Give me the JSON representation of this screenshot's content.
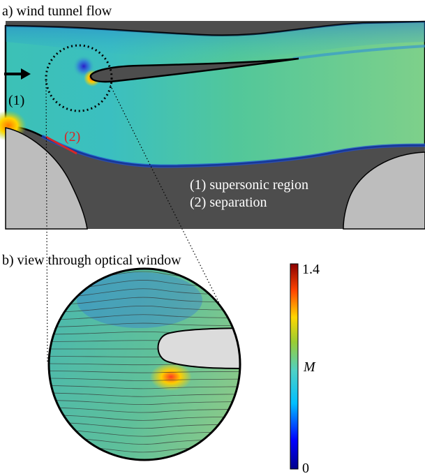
{
  "panel_a": {
    "title": "a) wind tunnel flow",
    "marker_1": "(1)",
    "marker_2": "(2)",
    "legend_1": "(1) supersonic region",
    "legend_2": "(2) separation"
  },
  "panel_b": {
    "title": "b) view through optical window"
  },
  "colorbar": {
    "max_label": "1.4",
    "min_label": "0",
    "symbol": "M",
    "range": [
      0,
      1.4
    ],
    "colormap": [
      "#00008b",
      "#0000ff",
      "#00bfff",
      "#4fd1c5",
      "#9acd32",
      "#ffd700",
      "#ff4500",
      "#8b0000"
    ]
  },
  "colors": {
    "wall": "#4d4d4d",
    "model_support": "#bdbdbd",
    "separation_marker": "#d62728"
  }
}
